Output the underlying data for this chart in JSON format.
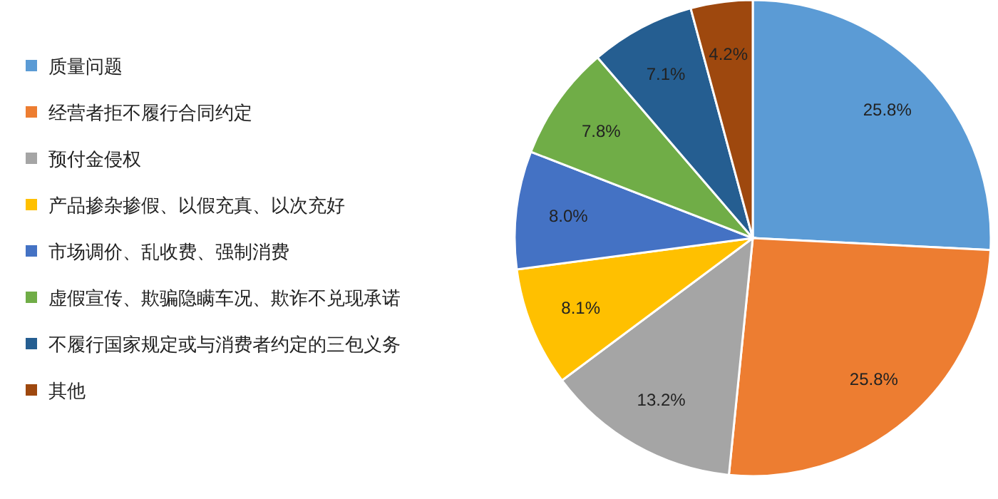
{
  "chart_data": {
    "type": "pie",
    "categories": [
      "质量问题",
      "经营者拒不履行合同约定",
      "预付金侵权",
      "产品掺杂掺假、以假充真、以次充好",
      "市场调价、乱收费、强制消费",
      "虚假宣传、欺骗隐瞒车况、欺诈不兑现承诺",
      "不履行国家规定或与消费者约定的三包义务",
      "其他"
    ],
    "values": [
      25.8,
      25.8,
      13.2,
      8.1,
      8.0,
      7.8,
      7.1,
      4.2
    ],
    "colors": [
      "#5b9bd5",
      "#ed7d31",
      "#a5a5a5",
      "#ffc000",
      "#4472c4",
      "#70ad47",
      "#255e91",
      "#9e480e"
    ],
    "value_labels": [
      "25.8%",
      "25.8%",
      "13.2%",
      "8.1%",
      "8.0%",
      "7.8%",
      "7.1%",
      "4.2%"
    ],
    "legend": "left"
  }
}
